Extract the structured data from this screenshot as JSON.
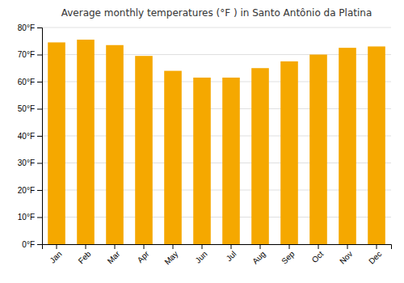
{
  "chart_data": {
    "type": "bar",
    "title": "Average monthly temperatures (°F ) in Santo Antônio da Platina",
    "categories": [
      "Jan",
      "Feb",
      "Mar",
      "Apr",
      "May",
      "Jun",
      "Jul",
      "Aug",
      "Sep",
      "Oct",
      "Nov",
      "Dec"
    ],
    "values": [
      74.5,
      75.5,
      73.5,
      69.5,
      64.0,
      61.5,
      61.5,
      65.0,
      67.5,
      70.0,
      72.5,
      73.0
    ],
    "color": "#F5A800",
    "ylim": [
      0,
      80
    ],
    "yticks": [
      {
        "value": 0,
        "label": "0°F"
      },
      {
        "value": 10,
        "label": "10°F"
      },
      {
        "value": 20,
        "label": "20°F"
      },
      {
        "value": 30,
        "label": "30°F"
      },
      {
        "value": 40,
        "label": "40°F"
      },
      {
        "value": 50,
        "label": "50°F"
      },
      {
        "value": 60,
        "label": "60°F"
      },
      {
        "value": 70,
        "label": "70°F"
      },
      {
        "value": 80,
        "label": "80°F"
      }
    ],
    "grid": true
  }
}
